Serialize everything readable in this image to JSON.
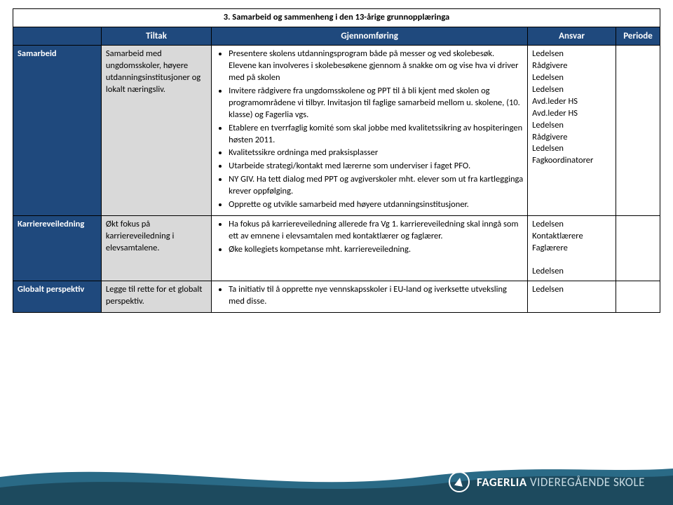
{
  "title": "3. Samarbeid og sammenheng i den 13-årige grunnopplæringa",
  "headers": {
    "c1": "",
    "c2": "Tiltak",
    "c3": "Gjennomføring",
    "c4": "Ansvar",
    "c5": "Periode"
  },
  "colwidths": {
    "c1": 120,
    "c2": 150,
    "c3": 430,
    "c4": 120,
    "c5": 60
  },
  "colors": {
    "header_bg": "#1f497d",
    "header_fg": "#ffffff",
    "tiltak_bg": "#d9d9d9",
    "border": "#000000",
    "wave1": "#2a6a86",
    "wave2": "#1d4a5e"
  },
  "rows": [
    {
      "cat": "Samarbeid",
      "tiltak": "Samarbeid med ungdomsskoler, høyere utdanningsinstitusjoner og lokalt næringsliv.",
      "bullets": [
        "Presentere skolens utdanningsprogram både på messer og ved skolebesøk. Elevene kan involveres i skolebesøkene gjennom å snakke om og vise hva vi driver med på skolen",
        "Invitere rådgivere fra ungdomsskolene og PPT til å bli kjent med skolen og programområdene vi tilbyr. Invitasjon til faglige samarbeid mellom u. skolene, (10. klasse) og Fagerlia vgs.",
        "Etablere en tverrfaglig komité som skal jobbe med kvalitetssikring av hospiteringen høsten 2011.",
        "Kvalitetssikre ordninga med praksisplasser",
        "Utarbeide strategi/kontakt med lærerne som underviser i faget PFO.",
        "NY GIV. Ha tett dialog med PPT og avgiverskoler mht. elever som ut fra kartlegginga krever oppfølging.",
        "Opprette og utvikle samarbeid med høyere utdanningsinstitusjoner."
      ],
      "ansvar": "Ledelsen\nRådgivere\nLedelsen\nLedelsen\nAvd.leder HS\nAvd.leder HS\nLedelsen\nRådgivere\nLedelsen\nFagkoordinatorer",
      "periode": ""
    },
    {
      "cat": "Karriereveiledning",
      "tiltak": "Økt fokus på karriereveiledning i elevsamtalene.",
      "bullets": [
        "Ha fokus på karriereveiledning allerede fra Vg 1. karriereveiledning skal inngå som ett av emnene i elevsamtalen med kontaktlærer og faglærer.",
        "Øke kollegiets kompetanse mht. karriereveiledning."
      ],
      "ansvar": "Ledelsen\nKontaktlærere\nFaglærere\n\nLedelsen",
      "periode": ""
    },
    {
      "cat": "Globalt perspektiv",
      "tiltak": "Legge til rette for et globalt perspektiv.",
      "bullets": [
        "Ta initiativ til å opprette nye vennskapsskoler i EU-land og iverksette utveksling med disse."
      ],
      "ansvar": "Ledelsen",
      "periode": ""
    }
  ],
  "logo": {
    "bold": "FAGERLIA",
    "thin": "VIDEREGÅENDE SKOLE"
  }
}
